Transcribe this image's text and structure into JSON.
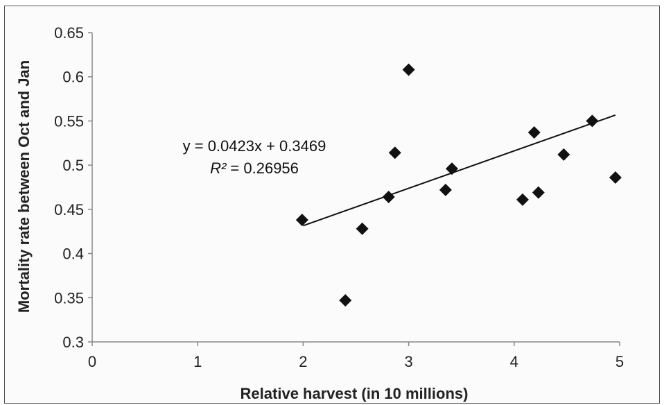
{
  "chart_data": {
    "type": "scatter",
    "title": "",
    "xlabel": "Relative harvest  (in 10 millions)",
    "ylabel": "Mortality rate between Oct and Jan",
    "xlim": [
      0,
      5
    ],
    "ylim": [
      0.3,
      0.65
    ],
    "xticks": [
      "0",
      "1",
      "2",
      "3",
      "4",
      "5"
    ],
    "yticks": [
      "0.3",
      "0.35",
      "0.4",
      "0.45",
      "0.5",
      "0.55",
      "0.6",
      "0.65"
    ],
    "grid": false,
    "legend": "none",
    "marker": "diamond",
    "marker_color": "#111111",
    "points": [
      {
        "x": 1.99,
        "y": 0.438
      },
      {
        "x": 2.4,
        "y": 0.347
      },
      {
        "x": 2.56,
        "y": 0.428
      },
      {
        "x": 2.81,
        "y": 0.464
      },
      {
        "x": 2.87,
        "y": 0.514
      },
      {
        "x": 3.0,
        "y": 0.608
      },
      {
        "x": 3.35,
        "y": 0.472
      },
      {
        "x": 3.41,
        "y": 0.496
      },
      {
        "x": 4.08,
        "y": 0.461
      },
      {
        "x": 4.19,
        "y": 0.537
      },
      {
        "x": 4.23,
        "y": 0.469
      },
      {
        "x": 4.47,
        "y": 0.512
      },
      {
        "x": 4.74,
        "y": 0.55
      },
      {
        "x": 4.96,
        "y": 0.486
      }
    ],
    "trendline": {
      "slope": 0.0423,
      "intercept": 0.3469,
      "x_range": [
        2.0,
        4.96
      ],
      "equation_label": "y = 0.0423x + 0.3469",
      "r2_symbol": "R²",
      "r2_value_text": " = 0.26956"
    }
  }
}
